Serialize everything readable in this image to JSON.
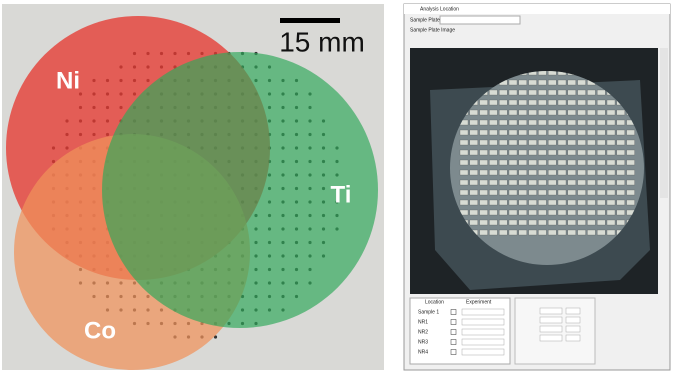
{
  "photo": {
    "labels": [
      "Ni",
      "Ti",
      "Co"
    ],
    "scale_bar": "15 mm"
  },
  "window": {
    "title": "Analysis Location",
    "sample_plates_label": "Sample Plates:",
    "sample_plate_image": "Sample Plate Image",
    "table": {
      "headers": [
        "Location",
        "Experiment"
      ],
      "rows": [
        "Sample 1",
        "NR1",
        "NR2",
        "NR3",
        "NR4"
      ]
    }
  }
}
